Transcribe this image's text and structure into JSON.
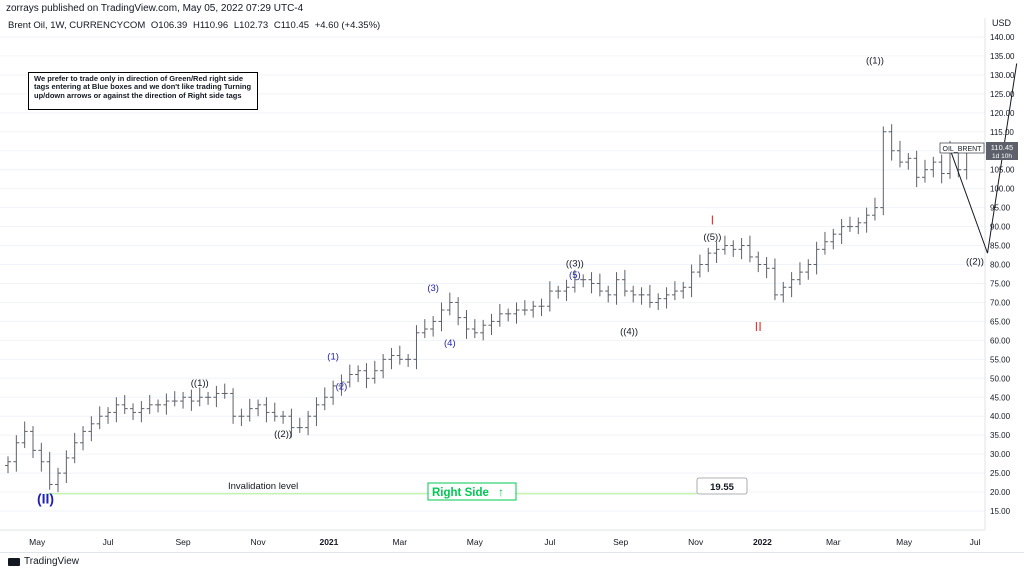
{
  "banner": "zorrays published on TradingView.com, May 05, 2022 07:29 UTC-4",
  "symbol_line": {
    "title": "Brent Oil, 1W, CURRENCYCOM",
    "open": "O106.39",
    "high": "H110.96",
    "low": "L102.73",
    "close": "C110.45",
    "change": "+4.60 (+4.35%)"
  },
  "note_text": "We prefer to trade only in direction of Green/Red right side tags entering at Blue boxes and we don't like trading Turning up/down arrows or against the direction of Right side tags",
  "currency": "USD",
  "price_tag": {
    "symbol": "OIL_BRENT",
    "price": "110.45",
    "countdown": "1d 10h"
  },
  "invalidation": {
    "label": "Invalidation level",
    "value": "19.55"
  },
  "right_side": {
    "label": "Right Side",
    "arrow": "↑"
  },
  "footer_brand": "TradingView",
  "colors": {
    "bar": "#5d606b",
    "blue_label": "#1f1fb4",
    "red_label": "#e53935",
    "green": "#00c853",
    "invalidation_line": "#b9f3a0"
  },
  "chart_data": {
    "type": "ohlc",
    "interval": "1W",
    "ylim": [
      10,
      145
    ],
    "yticks": [
      15,
      20,
      25,
      30,
      35,
      40,
      45,
      50,
      55,
      60,
      65,
      70,
      75,
      80,
      85,
      90,
      95,
      100,
      105,
      110,
      115,
      120,
      125,
      130,
      135,
      140
    ],
    "x_ticks": [
      "May",
      "Jul",
      "Sep",
      "Nov",
      "2021",
      "Mar",
      "May",
      "Jul",
      "Sep",
      "Nov",
      "2022",
      "Mar",
      "May",
      "Jul"
    ],
    "bold_ticks": [
      "2021",
      "2022"
    ],
    "xlim_weeks": [
      0,
      116
    ],
    "x_tick_weeks": [
      3.5,
      12,
      21,
      30,
      38.5,
      47,
      56,
      65,
      73.5,
      82.5,
      90.5,
      99,
      107.5,
      116
    ],
    "bars_close": [
      28,
      33,
      36,
      31,
      28,
      22,
      25,
      29,
      33,
      36,
      38,
      40,
      41,
      43,
      42,
      41,
      42,
      43,
      43,
      44,
      44,
      45,
      44,
      45,
      45,
      46,
      46,
      40,
      40,
      42,
      43,
      41,
      40,
      40,
      37,
      37,
      40,
      43,
      45,
      48,
      49,
      51,
      52,
      50,
      52,
      55,
      56,
      55,
      55,
      62,
      63,
      65,
      68,
      70,
      66,
      63,
      62,
      64,
      65,
      67,
      67,
      68,
      68,
      69,
      69,
      73,
      73,
      74,
      76,
      76,
      75,
      73,
      72,
      76,
      73,
      72,
      72,
      70,
      71,
      72,
      73,
      74,
      78,
      80,
      83,
      84,
      85,
      84,
      85,
      82,
      80,
      79,
      72,
      74,
      76,
      78,
      80,
      84,
      86,
      88,
      90,
      90,
      91,
      93,
      95,
      115,
      110,
      107,
      108,
      103,
      105,
      107,
      104,
      110,
      105,
      110
    ],
    "wave_path": [
      [
        113,
        110.45
      ],
      [
        117.5,
        83
      ],
      [
        121,
        133
      ]
    ],
    "invalidation_level": 19.55,
    "labels": [
      {
        "text": "(II)",
        "week": 4.5,
        "price": 17,
        "color": "blue"
      },
      {
        "text": "((1))",
        "week": 23,
        "price": 48,
        "color": "black"
      },
      {
        "text": "((2))",
        "week": 33,
        "price": 34.5,
        "color": "black"
      },
      {
        "text": "(1)",
        "week": 39,
        "price": 55,
        "color": "blue"
      },
      {
        "text": "(2)",
        "week": 40,
        "price": 47,
        "color": "blue"
      },
      {
        "text": "(3)",
        "week": 51,
        "price": 73,
        "color": "blue"
      },
      {
        "text": "(4)",
        "week": 53,
        "price": 58.5,
        "color": "blue"
      },
      {
        "text": "((3))",
        "week": 68,
        "price": 79.5,
        "color": "black"
      },
      {
        "text": "(5)",
        "week": 68,
        "price": 76.5,
        "color": "blue"
      },
      {
        "text": "((4))",
        "week": 74.5,
        "price": 61.5,
        "color": "black"
      },
      {
        "text": "I",
        "week": 84.5,
        "price": 90.5,
        "color": "red"
      },
      {
        "text": "((5))",
        "week": 84.5,
        "price": 86.5,
        "color": "black"
      },
      {
        "text": "II",
        "week": 90,
        "price": 62.5,
        "color": "red"
      },
      {
        "text": "((1))",
        "week": 104,
        "price": 133,
        "color": "black"
      },
      {
        "text": "((2))",
        "week": 116,
        "price": 80,
        "color": "black"
      }
    ]
  }
}
